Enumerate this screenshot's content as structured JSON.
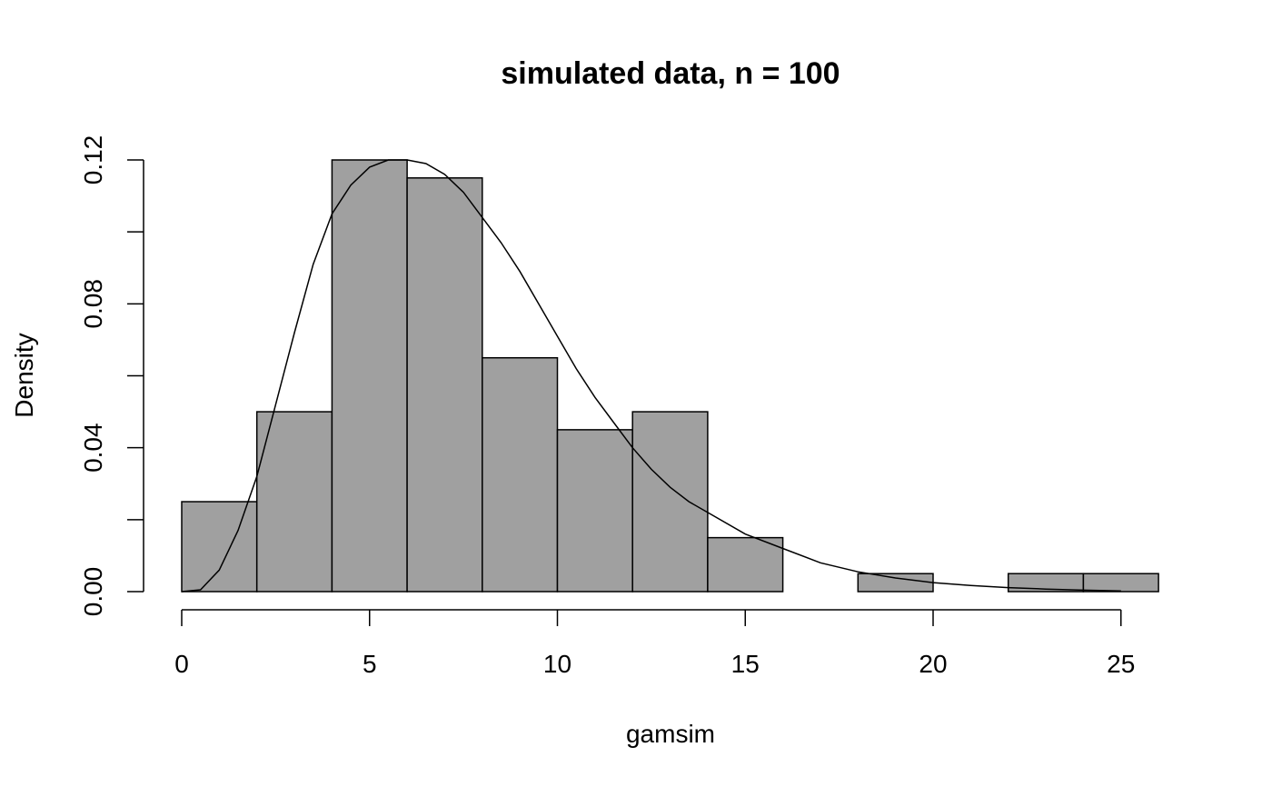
{
  "chart_data": {
    "type": "bar",
    "title": "simulated data, n = 100",
    "xlabel": "gamsim",
    "ylabel": "Density",
    "xlim": [
      0,
      26
    ],
    "ylim": [
      0,
      0.12
    ],
    "x_ticks": [
      0,
      5,
      10,
      15,
      20,
      25
    ],
    "x_tick_labels": [
      "0",
      "5",
      "10",
      "15",
      "20",
      "25"
    ],
    "y_ticks": [
      0,
      0.02,
      0.04,
      0.06,
      0.08,
      0.1,
      0.12
    ],
    "y_tick_labels": [
      "0.00",
      "",
      "0.04",
      "",
      "0.08",
      "",
      "0.12"
    ],
    "grid": false,
    "bar_color": "#a0a0a0",
    "bins": [
      {
        "start": 0,
        "end": 2,
        "density": 0.025
      },
      {
        "start": 2,
        "end": 4,
        "density": 0.05
      },
      {
        "start": 4,
        "end": 6,
        "density": 0.12
      },
      {
        "start": 6,
        "end": 8,
        "density": 0.115
      },
      {
        "start": 8,
        "end": 10,
        "density": 0.065
      },
      {
        "start": 10,
        "end": 12,
        "density": 0.045
      },
      {
        "start": 12,
        "end": 14,
        "density": 0.05
      },
      {
        "start": 14,
        "end": 16,
        "density": 0.015
      },
      {
        "start": 16,
        "end": 18,
        "density": 0.0
      },
      {
        "start": 18,
        "end": 20,
        "density": 0.005
      },
      {
        "start": 20,
        "end": 22,
        "density": 0.0
      },
      {
        "start": 22,
        "end": 24,
        "density": 0.005
      },
      {
        "start": 24,
        "end": 26,
        "density": 0.005
      }
    ],
    "curve": {
      "description": "gamma density overlay",
      "x": [
        0,
        0.5,
        1,
        1.5,
        2,
        2.5,
        3,
        3.5,
        4,
        4.5,
        5,
        5.5,
        6,
        6.5,
        7,
        7.5,
        8,
        8.5,
        9,
        9.5,
        10,
        10.5,
        11,
        11.5,
        12,
        12.5,
        13,
        13.5,
        14,
        15,
        16,
        17,
        18,
        19,
        20,
        21,
        22,
        23,
        24,
        25
      ],
      "y": [
        0,
        0.0005,
        0.006,
        0.017,
        0.032,
        0.052,
        0.072,
        0.091,
        0.105,
        0.113,
        0.118,
        0.12,
        0.12,
        0.119,
        0.116,
        0.111,
        0.104,
        0.097,
        0.089,
        0.08,
        0.071,
        0.062,
        0.054,
        0.047,
        0.04,
        0.034,
        0.029,
        0.025,
        0.022,
        0.016,
        0.012,
        0.008,
        0.0055,
        0.0038,
        0.0025,
        0.0017,
        0.0011,
        0.0007,
        0.0004,
        0.0002
      ]
    }
  }
}
